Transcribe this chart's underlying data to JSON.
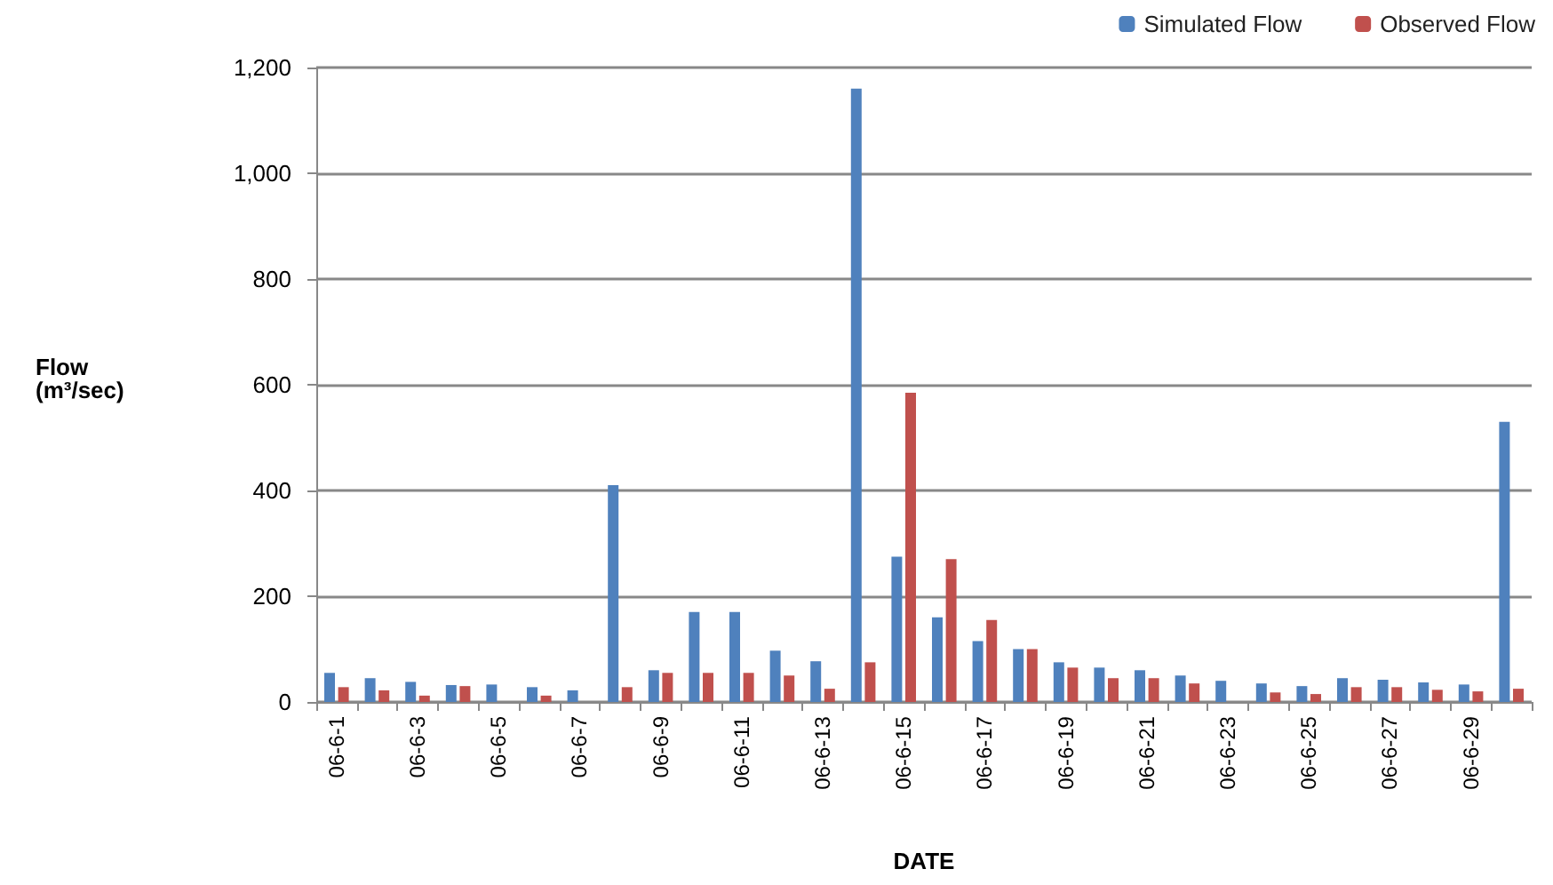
{
  "chart_data": {
    "type": "bar",
    "xlabel": "DATE",
    "ylabel": "Flow\n(m³/sec)",
    "categories": [
      "06-6-1",
      null,
      "06-6-3",
      null,
      "06-6-5",
      null,
      "06-6-7",
      null,
      "06-6-9",
      null,
      "06-6-11",
      null,
      "06-6-13",
      null,
      "06-6-15",
      null,
      "06-6-17",
      null,
      "06-6-19",
      null,
      "06-6-21",
      null,
      "06-6-23",
      null,
      "06-6-25",
      null,
      "06-6-27",
      null,
      "06-6-29",
      null
    ],
    "series": [
      {
        "name": "Simulated Flow",
        "color": "#4f81bd",
        "values": [
          55,
          45,
          38,
          32,
          33,
          28,
          22,
          410,
          60,
          170,
          170,
          97,
          77,
          1160,
          275,
          160,
          115,
          100,
          75,
          65,
          60,
          50,
          40,
          35,
          30,
          45,
          42,
          37,
          33,
          530
        ]
      },
      {
        "name": "Observed Flow",
        "color": "#c0504d",
        "values": [
          28,
          22,
          12,
          30,
          null,
          12,
          null,
          28,
          55,
          55,
          55,
          50,
          25,
          75,
          585,
          270,
          155,
          100,
          65,
          45,
          45,
          35,
          null,
          18,
          15,
          28,
          28,
          23,
          20,
          25
        ]
      }
    ],
    "ylim": [
      0,
      1200
    ],
    "yticks": [
      0,
      200,
      400,
      600,
      800,
      {
        "value": 1000,
        "label": "1,000"
      },
      {
        "value": 1200,
        "label": "1,200"
      }
    ],
    "grid": "y",
    "legend": "top right"
  }
}
